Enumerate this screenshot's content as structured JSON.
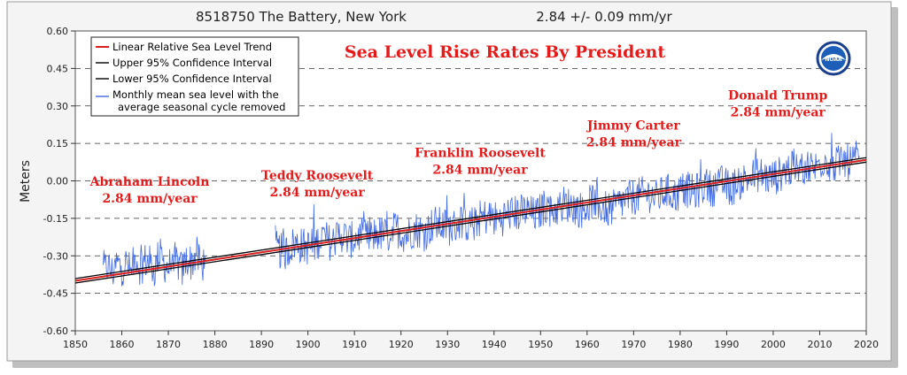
{
  "header": {
    "station": "8518750 The Battery, New York",
    "rate": "2.84 +/-  0.09 mm/yr"
  },
  "logo": {
    "text": "NOAA"
  },
  "chart_data": {
    "type": "line",
    "title": "Sea Level Rise Rates  By President",
    "xlabel": "",
    "ylabel": "Meters",
    "xlim": [
      1850,
      2020
    ],
    "ylim": [
      -0.6,
      0.6
    ],
    "x_ticks": [
      1850,
      1860,
      1870,
      1880,
      1890,
      1900,
      1910,
      1920,
      1930,
      1940,
      1950,
      1960,
      1970,
      1980,
      1990,
      2000,
      2010,
      2020
    ],
    "y_ticks": [
      "0.60",
      "0.45",
      "0.30",
      "0.15",
      "0.00",
      "-0.15",
      "-0.30",
      "-0.45",
      "-0.60"
    ],
    "y_tick_values": [
      0.6,
      0.45,
      0.3,
      0.15,
      0.0,
      -0.15,
      -0.3,
      -0.45,
      -0.6
    ],
    "grid": "horizontal-dashed",
    "legend_position": "top-left",
    "legend": [
      {
        "label": "Linear Relative Sea Level Trend",
        "color": "#d81e1e"
      },
      {
        "label": "Upper 95% Confidence Interval",
        "color": "#000000"
      },
      {
        "label": "Lower 95% Confidence Interval",
        "color": "#000000"
      },
      {
        "label": "Monthly mean sea level with the",
        "label2": "average seasonal cycle removed",
        "color": "#4169e1"
      }
    ],
    "trend": {
      "x": [
        1850,
        2020
      ],
      "y": [
        -0.4,
        0.084
      ],
      "ci": 0.009,
      "rate_mm_per_yr": 2.84
    },
    "monthly_series": {
      "name": "Monthly mean sea level with the average seasonal cycle removed",
      "color": "#4169e1",
      "segments": [
        {
          "x": [
            1856.0,
            1857.0,
            1858.0,
            1859.0,
            1860.0,
            1861.0,
            1862.0,
            1863.0,
            1864.0,
            1865.0,
            1866.0,
            1867.0,
            1868.0,
            1869.0,
            1870.0,
            1871.0,
            1872.0,
            1873.0,
            1874.0,
            1875.0,
            1876.0,
            1877.0,
            1878.0
          ],
          "y": [
            -0.36,
            -0.34,
            -0.37,
            -0.33,
            -0.35,
            -0.33,
            -0.37,
            -0.3,
            -0.35,
            -0.32,
            -0.33,
            -0.36,
            -0.29,
            -0.33,
            -0.35,
            -0.31,
            -0.33,
            -0.36,
            -0.31,
            -0.33,
            -0.29,
            -0.34,
            -0.32
          ]
        },
        {
          "x": [
            1893.0,
            1895.0,
            1897.0,
            1899.0,
            1901.0,
            1903.0,
            1905.0,
            1907.0,
            1909.0,
            1911.0,
            1913.0,
            1915.0,
            1917.0,
            1919.0,
            1921.0,
            1923.0,
            1925.0,
            1927.0,
            1929.0,
            1931.0,
            1933.0,
            1935.0,
            1937.0,
            1939.0,
            1941.0,
            1943.0,
            1945.0,
            1947.0,
            1949.0,
            1951.0,
            1953.0,
            1955.0,
            1957.0,
            1959.0,
            1961.0,
            1963.0,
            1965.0,
            1967.0,
            1969.0,
            1971.0,
            1973.0,
            1975.0,
            1977.0,
            1979.0,
            1981.0,
            1983.0,
            1985.0,
            1987.0,
            1989.0,
            1991.0,
            1993.0,
            1995.0,
            1997.0,
            1999.0,
            2001.0,
            2003.0,
            2005.0,
            2007.0,
            2009.0,
            2011.0,
            2013.0,
            2015.0,
            2017.0,
            2018.5
          ],
          "y": [
            -0.27,
            -0.29,
            -0.25,
            -0.26,
            -0.27,
            -0.22,
            -0.25,
            -0.21,
            -0.24,
            -0.22,
            -0.23,
            -0.21,
            -0.22,
            -0.19,
            -0.22,
            -0.19,
            -0.21,
            -0.17,
            -0.18,
            -0.19,
            -0.16,
            -0.18,
            -0.15,
            -0.14,
            -0.16,
            -0.13,
            -0.13,
            -0.12,
            -0.14,
            -0.1,
            -0.12,
            -0.09,
            -0.1,
            -0.12,
            -0.08,
            -0.1,
            -0.12,
            -0.09,
            -0.07,
            -0.06,
            -0.05,
            -0.07,
            -0.04,
            -0.06,
            -0.03,
            -0.05,
            -0.02,
            -0.03,
            -0.01,
            -0.03,
            0.0,
            0.01,
            0.03,
            0.01,
            0.02,
            0.05,
            0.04,
            0.06,
            0.05,
            0.09,
            0.06,
            0.08,
            0.07,
            0.1
          ]
        }
      ]
    },
    "annotations": [
      {
        "name": "abraham-lincoln",
        "lines": [
          "Abraham Lincoln",
          "2.84 mm/year"
        ],
        "x": 1866,
        "y": -0.02
      },
      {
        "name": "teddy-roosevelt",
        "lines": [
          "Teddy Roosevelt",
          "2.84 mm/year"
        ],
        "x": 1902,
        "y": 0.005
      },
      {
        "name": "franklin-roosevelt",
        "lines": [
          "Franklin Roosevelt",
          "2.84 mm/year"
        ],
        "x": 1937,
        "y": 0.095
      },
      {
        "name": "jimmy-carter",
        "lines": [
          "Jimmy Carter",
          "2.84 mm/year"
        ],
        "x": 1970,
        "y": 0.205
      },
      {
        "name": "donald-trump",
        "lines": [
          "Donald Trump",
          "2.84 mm/year"
        ],
        "x": 2001,
        "y": 0.325
      }
    ]
  }
}
